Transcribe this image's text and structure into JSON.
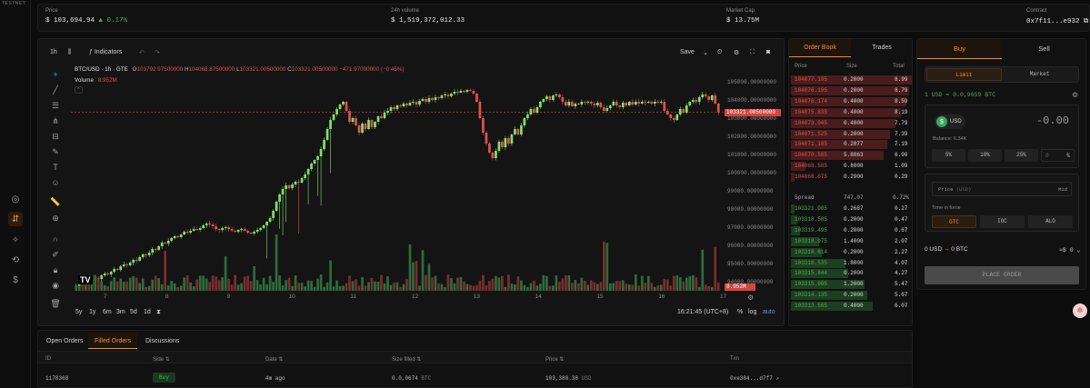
{
  "rail": {
    "network": "TESTNET"
  },
  "stats": {
    "price_label": "Price",
    "price_value": "$ 103,694.94",
    "price_change": "▲ 0.17%",
    "volume_label": "24h volume",
    "volume_value": "$ 1,519,372,012.33",
    "mcap_label": "Market Cap",
    "mcap_value": "$ 13.75M",
    "contract_label": "Contract",
    "contract_value": "0x7f11...e932"
  },
  "chart": {
    "interval": "1h",
    "indicators_label": "Indicators",
    "save_label": "Save",
    "symbol": "BTC/USD · 1h · GTE",
    "o_label": "O",
    "o_value": "103792.97500000",
    "h_label": "H",
    "h_value": "104068.87500000",
    "l_label": "L",
    "l_value": "103321.00500000",
    "c_label": "C",
    "c_value": "103321.00500000",
    "change": "−471.97000000 (−0.45%)",
    "volume_label": "Volume",
    "volume_value": "8.952M",
    "last_price_tag": "103321.00500000",
    "volume_tag": "8.952M",
    "y_ticks": [
      "105000.00000000",
      "104000.00000000",
      "103000.00000000",
      "102000.00000000",
      "101000.00000000",
      "100000.00000000",
      "99000.00000000",
      "98000.00000000",
      "97000.00000000",
      "96000.00000000",
      "95000.00000000",
      "94000.00000000"
    ],
    "x_ticks": [
      "7",
      "8",
      "9",
      "10",
      "11",
      "12",
      "13",
      "14",
      "15",
      "16",
      "17"
    ],
    "ranges": [
      "5y",
      "1y",
      "6m",
      "3m",
      "5d",
      "1d"
    ],
    "time": "16:21:45 (UTC+8)",
    "pct_label": "%",
    "log_label": "log",
    "auto_label": "auto",
    "colors": {
      "up": "#4caf50",
      "down": "#e0524e",
      "up_bright": "#7ee26b"
    }
  },
  "chart_data": {
    "type": "candlestick",
    "symbol": "BTC/USD",
    "interval": "1h",
    "ylim": [
      93500,
      105500
    ],
    "x_ticks": [
      "7",
      "8",
      "9",
      "10",
      "11",
      "12",
      "13",
      "14",
      "15",
      "16",
      "17"
    ],
    "close": [
      93780,
      93900,
      93850,
      94050,
      94000,
      94120,
      94200,
      94150,
      94350,
      94450,
      94400,
      94550,
      94700,
      94650,
      94850,
      94950,
      94900,
      95050,
      95200,
      95150,
      95350,
      95500,
      95450,
      95600,
      95800,
      95750,
      95950,
      96150,
      96100,
      96250,
      96400,
      96500,
      96450,
      96600,
      96750,
      96700,
      96800,
      96900,
      96850,
      96950,
      97100,
      97200,
      97150,
      97050,
      96900,
      96850,
      96950,
      97000,
      96900,
      96800,
      96750,
      96850,
      96900,
      96800,
      96700,
      96650,
      96750,
      96850,
      96950,
      97100,
      97300,
      97500,
      97900,
      98400,
      98800,
      99100,
      99300,
      99150,
      99350,
      99500,
      99450,
      99700,
      99900,
      100200,
      100500,
      100700,
      100900,
      101300,
      101800,
      102400,
      102900,
      103200,
      103500,
      103750,
      103900,
      103400,
      102800,
      103000,
      102600,
      102200,
      102700,
      102400,
      102900,
      102500,
      102800,
      103100,
      103000,
      103300,
      103400,
      103600,
      103500,
      103700,
      103650,
      103800,
      103700,
      103850,
      103900,
      103750,
      103950,
      104050,
      103900,
      104100,
      104000,
      104150,
      104100,
      104250,
      104300,
      104200,
      104350,
      104450,
      104400,
      104500,
      104450,
      104550,
      104500,
      104350,
      103900,
      103000,
      102200,
      101600,
      101100,
      100800,
      101200,
      101700,
      101400,
      101900,
      101600,
      102100,
      102400,
      102100,
      102600,
      103000,
      103200,
      103500,
      103300,
      103600,
      103900,
      104050,
      104200,
      104000,
      104250,
      104300,
      104150,
      103900,
      103700,
      103900,
      103650,
      103800,
      103750,
      103900,
      103850,
      103900,
      103800,
      103700,
      103850,
      103600,
      103400,
      103550,
      103700,
      103900,
      103700,
      103600,
      103850,
      103700,
      103900,
      103750,
      103900,
      103800,
      103900,
      103850,
      103900,
      103800,
      103900,
      103850,
      103900,
      103400,
      103200,
      103000,
      102900,
      103200,
      103500,
      103300,
      103700,
      103900,
      104000,
      103900,
      104150,
      104300,
      104200,
      104000,
      104250,
      103800,
      103321
    ]
  },
  "orderbook": {
    "tabs": [
      "Order Book",
      "Trades"
    ],
    "headers": {
      "price": "Price",
      "size": "Size",
      "total": "Total"
    },
    "asks": [
      {
        "price": "104077.105",
        "size": "0.2000",
        "total": "8.99"
      },
      {
        "price": "104076.195",
        "size": "0.2000",
        "total": "8.79"
      },
      {
        "price": "104076.174",
        "size": "0.4000",
        "total": "8.59"
      },
      {
        "price": "104075.835",
        "size": "0.4000",
        "total": "8.19"
      },
      {
        "price": "104073.045",
        "size": "0.4000",
        "total": "7.79"
      },
      {
        "price": "104071.525",
        "size": "0.2000",
        "total": "7.39"
      },
      {
        "price": "104071.185",
        "size": "0.2877",
        "total": "7.19"
      },
      {
        "price": "104070.585",
        "size": "5.8863",
        "total": "6.90"
      },
      {
        "price": "104068.585",
        "size": "0.8000",
        "total": "1.09"
      },
      {
        "price": "104068.075",
        "size": "0.2900",
        "total": "0.29"
      }
    ],
    "spread": {
      "label": "Spread",
      "value": "747.07",
      "pct": "0.72%"
    },
    "bids": [
      {
        "price": "103321.005",
        "size": "0.2687",
        "total": "0.27"
      },
      {
        "price": "103318.585",
        "size": "0.2000",
        "total": "0.47"
      },
      {
        "price": "103319.495",
        "size": "0.2000",
        "total": "0.67"
      },
      {
        "price": "103318.975",
        "size": "1.4000",
        "total": "2.07"
      },
      {
        "price": "103318.614",
        "size": "0.2000",
        "total": "2.27"
      },
      {
        "price": "103318.535",
        "size": "1.8000",
        "total": "4.07"
      },
      {
        "price": "103315.844",
        "size": "0.2000",
        "total": "4.27"
      },
      {
        "price": "103315.985",
        "size": "1.2000",
        "total": "5.47"
      },
      {
        "price": "103314.135",
        "size": "0.2000",
        "total": "5.67"
      },
      {
        "price": "103313.565",
        "size": "0.4000",
        "total": "6.07"
      }
    ]
  },
  "trade": {
    "tabs": [
      "Buy",
      "Sell"
    ],
    "order_types": [
      "Limit",
      "Market"
    ],
    "rate": "1 USD = 0.0,9659 BTC",
    "currency": "USD",
    "amount": "-0.00",
    "balance": "Balance: 6.34K",
    "pcts": [
      "5%",
      "10%",
      "25%"
    ],
    "pct_input_placeholder": "0",
    "pct_suffix": "%",
    "price_label": "Price",
    "price_unit": "(USD)",
    "mid_label": "Mid",
    "tif_label": "Time in force",
    "tif": [
      "GTC",
      "IOC",
      "ALO"
    ],
    "summary_from": "0 USD",
    "summary_to": "0 BTC",
    "fee": "≈$ 0",
    "place_order": "PLACE ORDER"
  },
  "orders": {
    "tabs": [
      "Open Orders",
      "Filled Orders",
      "Discussions"
    ],
    "headers": [
      "ID",
      "Side",
      "Date",
      "Size filled",
      "Price",
      "Txn"
    ],
    "rows": [
      {
        "id": "1178368",
        "side": "Buy",
        "date": "4m ago",
        "size": "0.0,0674",
        "size_unit": "BTC",
        "price": "103,388.38",
        "price_unit": "USD",
        "txn": "0xe384...d7f7"
      }
    ]
  }
}
